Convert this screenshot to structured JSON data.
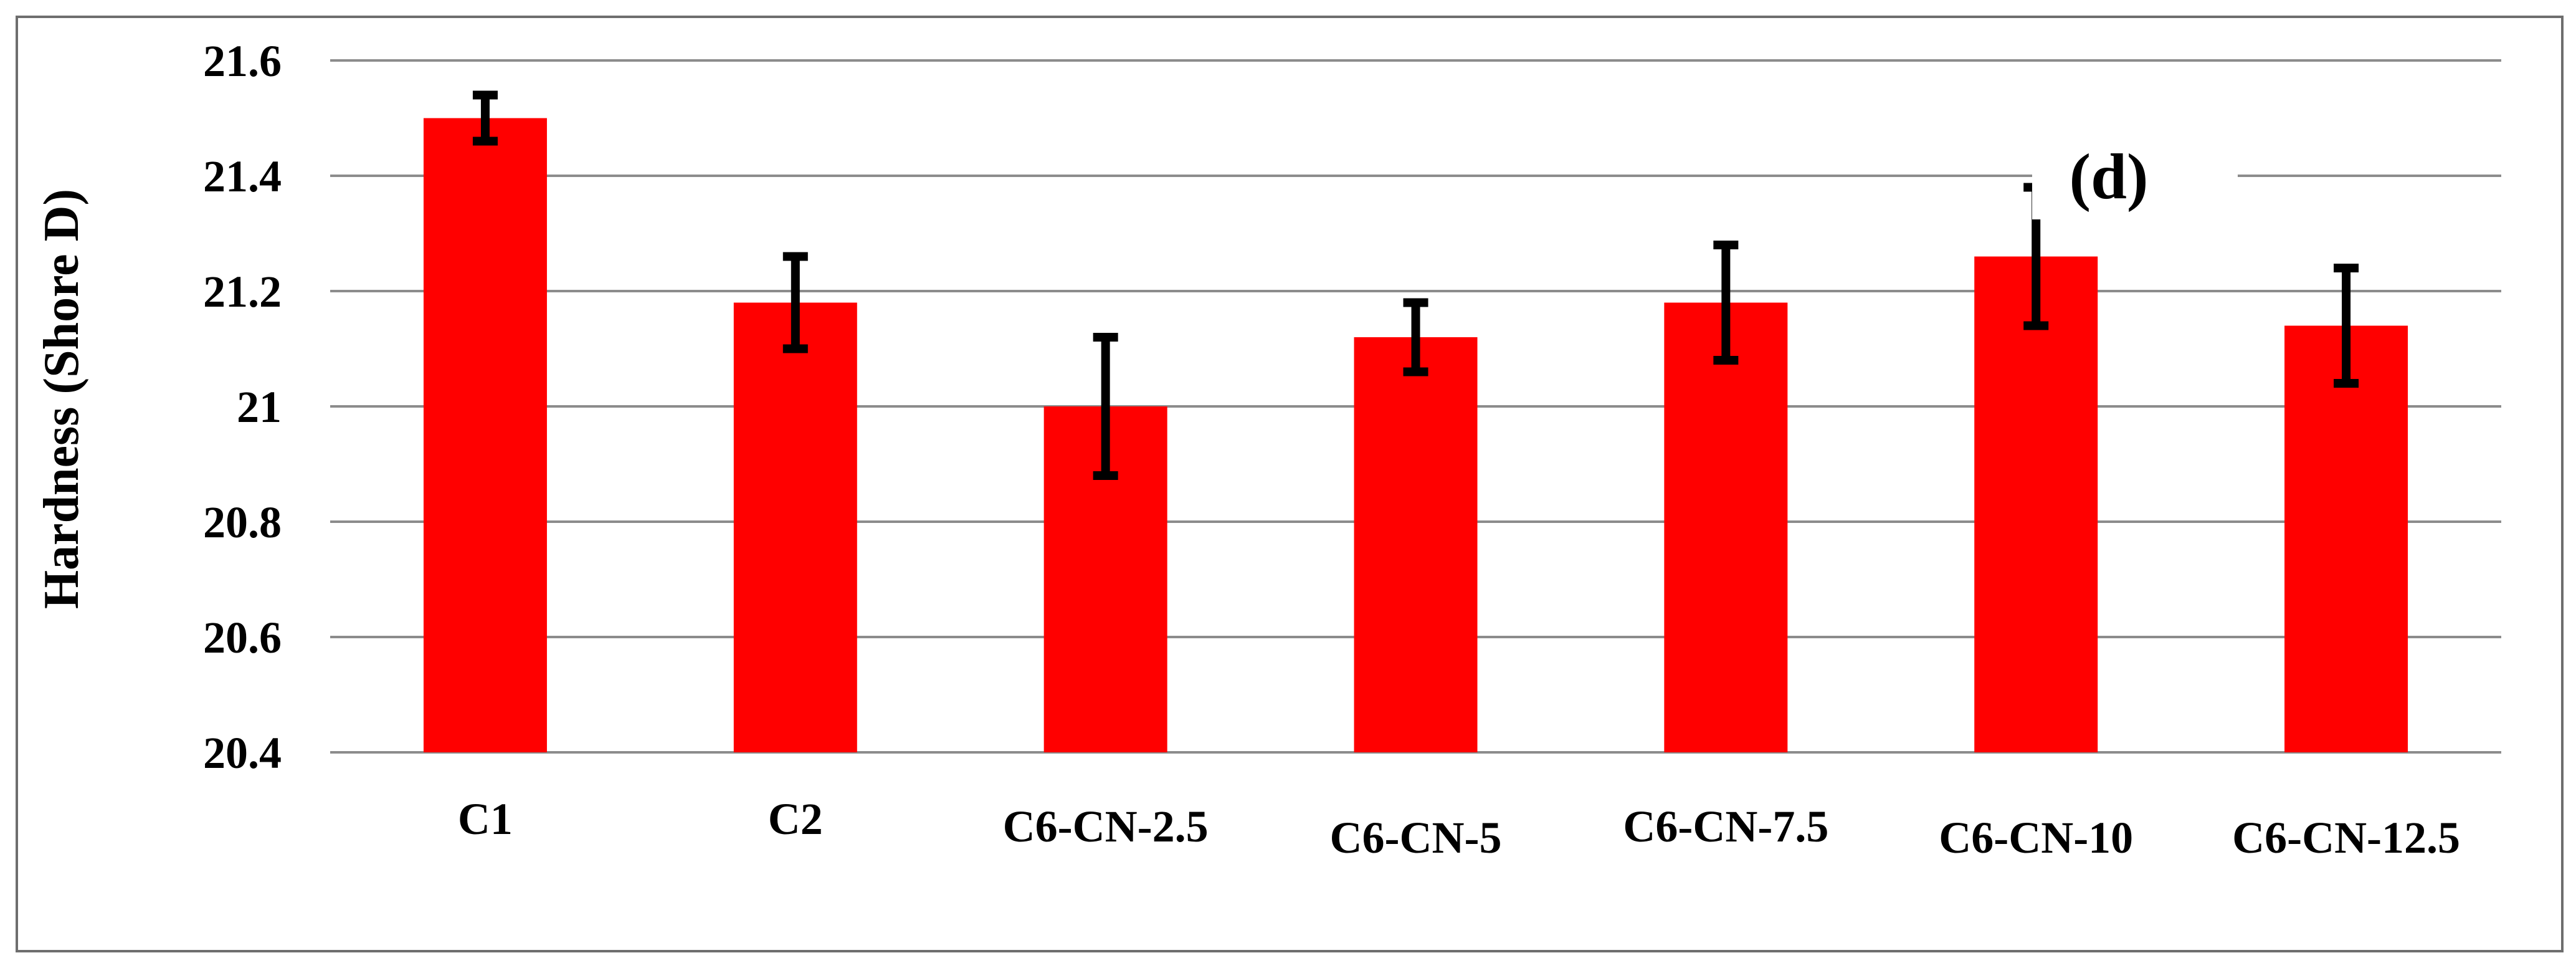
{
  "chart_data": {
    "type": "bar",
    "title": "",
    "annotation": "(d)",
    "xlabel": "",
    "ylabel": "Hardness  (Shore D)",
    "categories": [
      "C1",
      "C2",
      "C6-CN-2.5",
      "C6-CN-5",
      "C6-CN-7.5",
      "C6-CN-10",
      "C6-CN-12.5"
    ],
    "series": [
      {
        "values": [
          21.5,
          21.18,
          21.0,
          21.12,
          21.18,
          21.26,
          21.14
        ],
        "errors": [
          0.04,
          0.08,
          0.12,
          0.06,
          0.1,
          0.12,
          0.1
        ],
        "color": "#ff0000"
      }
    ],
    "ylim": [
      20.4,
      21.6
    ],
    "yticks": [
      20.4,
      20.6,
      20.8,
      21,
      21.2,
      21.4,
      21.6
    ],
    "ytick_labels": [
      "20.4",
      "20.6",
      "20.8",
      "21",
      "21.2",
      "21.4",
      "21.6"
    ],
    "grid": true,
    "gridline_color": "#8c8c8c",
    "errorbar_color": "#000000",
    "border_color": "#6e6e6e"
  }
}
